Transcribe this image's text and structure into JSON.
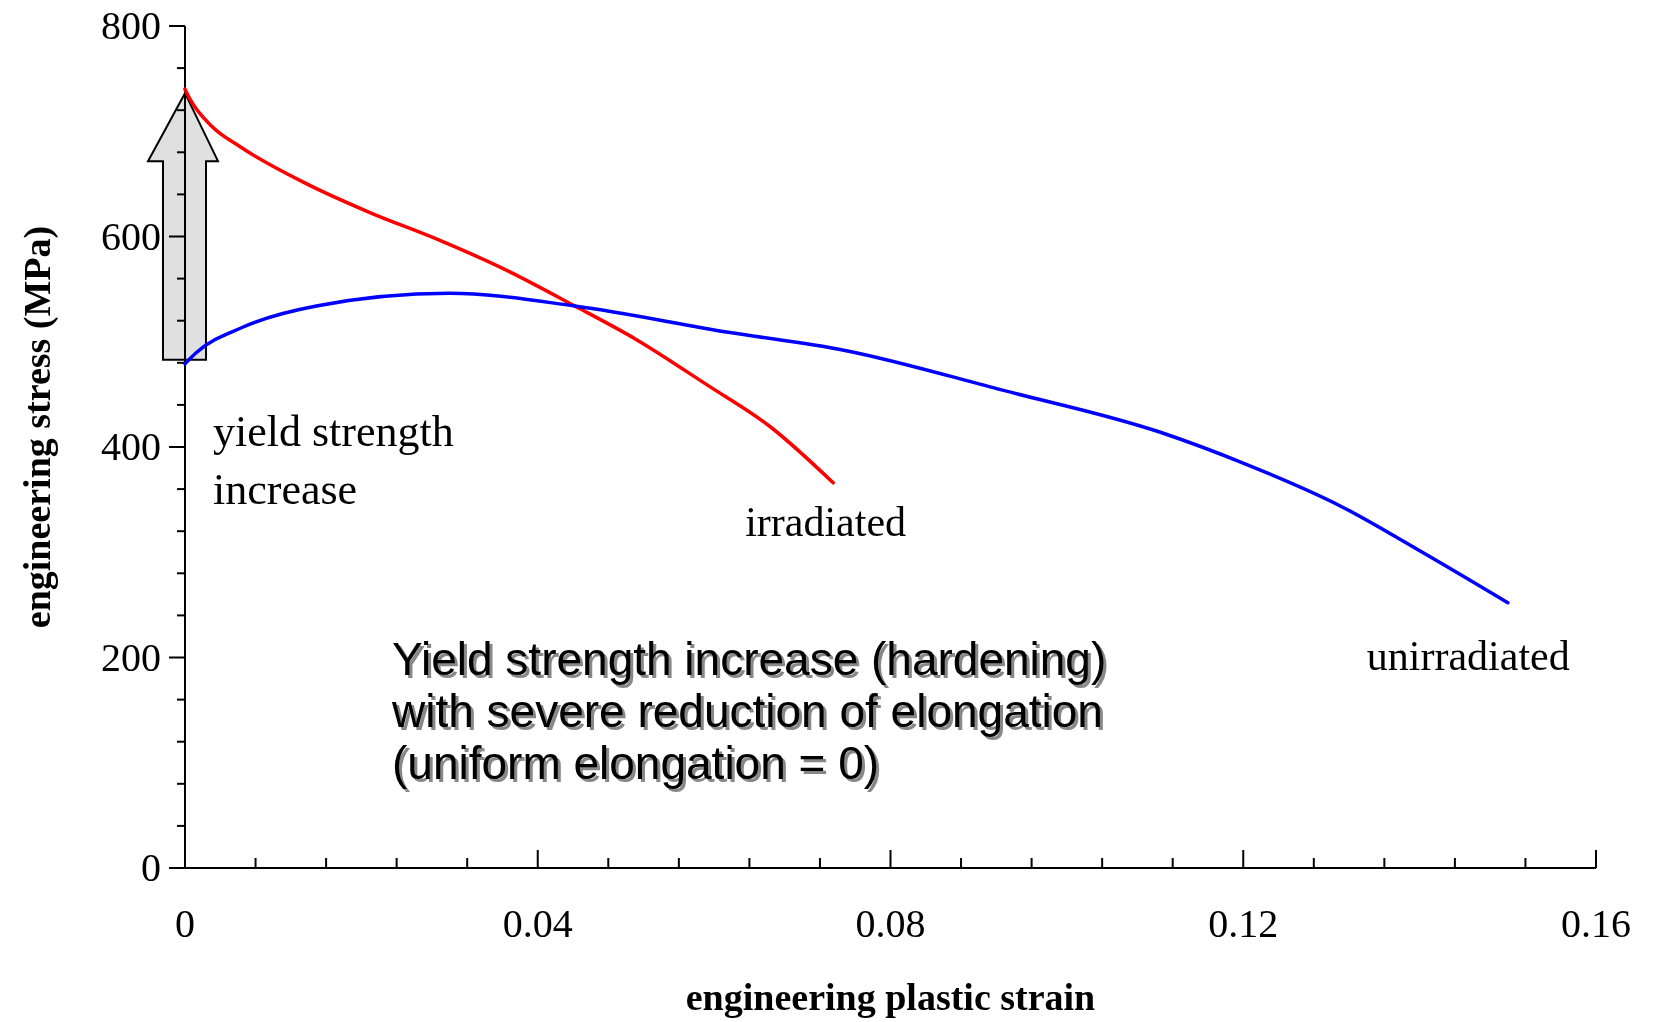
{
  "chart_data": {
    "type": "line",
    "xlabel": "engineering plastic strain",
    "ylabel": "engineering stress (MPa)",
    "xlim": [
      0,
      0.16
    ],
    "ylim": [
      0,
      800
    ],
    "xticks": [
      0,
      {
        "value": 0.008,
        "label": null
      },
      {
        "value": 0.016,
        "label": null
      },
      {
        "value": 0.024,
        "label": null
      },
      {
        "value": 0.032,
        "label": null
      },
      0.04,
      {
        "value": 0.048,
        "label": null
      },
      {
        "value": 0.056,
        "label": null
      },
      {
        "value": 0.064,
        "label": null
      },
      {
        "value": 0.072,
        "label": null
      },
      0.08,
      {
        "value": 0.088,
        "label": null
      },
      {
        "value": 0.096,
        "label": null
      },
      {
        "value": 0.104,
        "label": null
      },
      {
        "value": 0.112,
        "label": null
      },
      0.12,
      {
        "value": 0.128,
        "label": null
      },
      {
        "value": 0.136,
        "label": null
      },
      {
        "value": 0.144,
        "label": null
      },
      {
        "value": 0.152,
        "label": null
      },
      0.16
    ],
    "yticks": [
      0,
      {
        "value": 40,
        "label": null
      },
      {
        "value": 80,
        "label": null
      },
      {
        "value": 120,
        "label": null
      },
      {
        "value": 160,
        "label": null
      },
      200,
      {
        "value": 240,
        "label": null
      },
      {
        "value": 280,
        "label": null
      },
      {
        "value": 320,
        "label": null
      },
      {
        "value": 360,
        "label": null
      },
      400,
      {
        "value": 440,
        "label": null
      },
      {
        "value": 480,
        "label": null
      },
      {
        "value": 520,
        "label": null
      },
      {
        "value": 560,
        "label": null
      },
      600,
      {
        "value": 640,
        "label": null
      },
      {
        "value": 680,
        "label": null
      },
      {
        "value": 720,
        "label": null
      },
      {
        "value": 760,
        "label": null
      },
      800
    ],
    "line_style": "solid",
    "series": [
      {
        "name": "irradiated",
        "color": "#ff0000",
        "x": [
          0,
          0.0006,
          0.003,
          0.0063,
          0.0138,
          0.0209,
          0.0287,
          0.0362,
          0.0442,
          0.0512,
          0.0592,
          0.0664,
          0.0735
        ],
        "values": [
          740,
          730,
          705,
          685,
          650,
          623,
          597,
          569,
          534,
          502,
          459,
          419,
          366
        ]
      },
      {
        "name": "unirradiated",
        "color": "#0000ff",
        "x": [
          0,
          0.0012,
          0.0066,
          0.0149,
          0.03,
          0.0442,
          0.0616,
          0.0747,
          0.0927,
          0.1106,
          0.1202,
          0.131,
          0.1405,
          0.15
        ],
        "values": [
          479,
          489,
          514,
          534,
          546,
          534,
          509,
          492,
          454,
          414,
          384,
          344,
          299,
          252
        ]
      }
    ],
    "annotations": [
      {
        "text": "yield strength\nincrease",
        "x": 0,
        "y": 480
      },
      "Yield strength increase (hardening)\nwith severe reduction of elongation\n(uniform elongation = 0)"
    ]
  }
}
